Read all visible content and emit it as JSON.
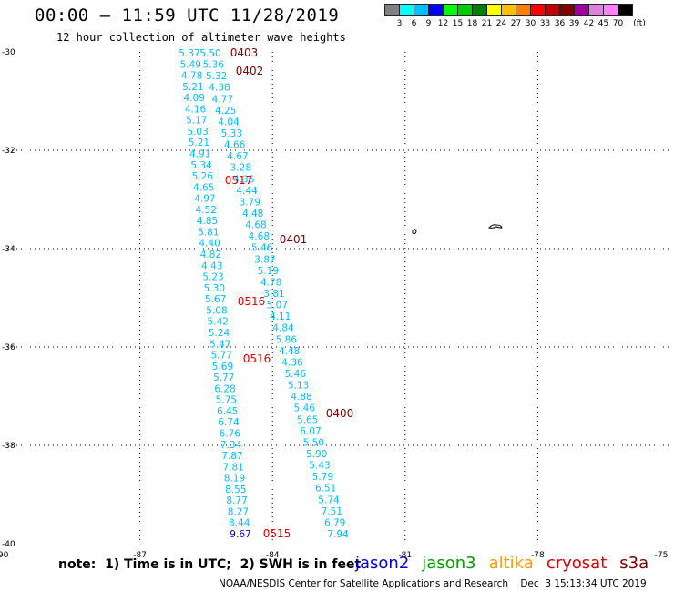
{
  "title": "00:00 – 11:59 UTC 11/28/2019",
  "subtitle": "12 hour collection of altimeter wave heights",
  "legend": {
    "unit_label": "(ft)",
    "ticks": [
      "3",
      "6",
      "9",
      "12",
      "15",
      "18",
      "21",
      "24",
      "27",
      "30",
      "33",
      "36",
      "39",
      "42",
      "45",
      "70"
    ],
    "colors": [
      "#808080",
      "#00ffff",
      "#00bfff",
      "#0000ff",
      "#00ff00",
      "#00cc00",
      "#008000",
      "#ffff00",
      "#ffc000",
      "#ff8000",
      "#ff0000",
      "#c00000",
      "#800000",
      "#a000a0",
      "#e080e0",
      "#ff80ff",
      "#000000"
    ]
  },
  "axes": {
    "lon_labels": [
      "-90",
      "-87",
      "-84",
      "-81",
      "-78",
      "-75"
    ],
    "lat_labels": [
      "-30",
      "-32",
      "-34",
      "-36",
      "-38",
      "-40"
    ]
  },
  "note": "note:  1) Time is in UTC;  2) SWH is in feet",
  "satellites": [
    {
      "name": "jason2",
      "color": "#0000e0"
    },
    {
      "name": "jason3",
      "color": "#00a000"
    },
    {
      "name": "altika",
      "color": "#ff9900"
    },
    {
      "name": "cryosat",
      "color": "#e00000"
    },
    {
      "name": "s3a",
      "color": "#800000"
    }
  ],
  "footer": "NOAA/NESDIS Center for Satellite Applications and Research    Dec  3 15:13:34 UTC 2019",
  "track_west": [
    "5.37",
    "5.49",
    "4.78",
    "5.21",
    "4.09",
    "4.16",
    "5.17",
    "5.03",
    "5.21",
    "4.91",
    "5.34",
    "5.26",
    "4.65",
    "4.97",
    "4.52",
    "4.85",
    "5.81",
    "4.40",
    "4.82",
    "4.43",
    "5.23",
    "5.30",
    "5.67",
    "5.08",
    "5.42",
    "5.24",
    "5.47",
    "5.77",
    "5.69",
    "5.77",
    "6.28",
    "5.75",
    "6.45",
    "6.74",
    "6.76",
    "7.34",
    "7.87",
    "7.81",
    "8.19",
    "8.55",
    "8.77",
    "8.27",
    "8.44",
    "9.67"
  ],
  "track_west_colors": {
    "default": "#00bfff",
    "last": "#0000ff"
  },
  "track_mid": [
    "5.50",
    "5.36",
    "5.32",
    "4.38",
    "4.77",
    "4.25",
    "4.04",
    "5.33",
    "4.66",
    "4.67",
    "3.28",
    "4.36",
    "4.44",
    "3.79",
    "4.48",
    "4.68",
    "4.68",
    "5.46",
    "3.87",
    "5.19",
    "4.78",
    "3.81",
    "5.07",
    "4.11",
    "4.84",
    "5.86",
    "4.48",
    "4.36",
    "5.46",
    "5.13",
    "4.88",
    "5.46",
    "5.65",
    "6.07",
    "5.50",
    "5.90",
    "5.43",
    "5.79",
    "6.51",
    "5.74",
    "7.51",
    "6.79",
    "7.94"
  ],
  "track_mid_color": "#00bfff",
  "time_tags": [
    {
      "label": "0403",
      "color": "#800000"
    },
    {
      "label": "0402",
      "color": "#800000"
    },
    {
      "label": "0517",
      "color": "#e00000"
    },
    {
      "label": "0401",
      "color": "#800000"
    },
    {
      "label": "0516",
      "color": "#e00000"
    },
    {
      "label": "0516",
      "color": "#e00000"
    },
    {
      "label": "0400",
      "color": "#800000"
    },
    {
      "label": "0515",
      "color": "#e00000"
    }
  ]
}
